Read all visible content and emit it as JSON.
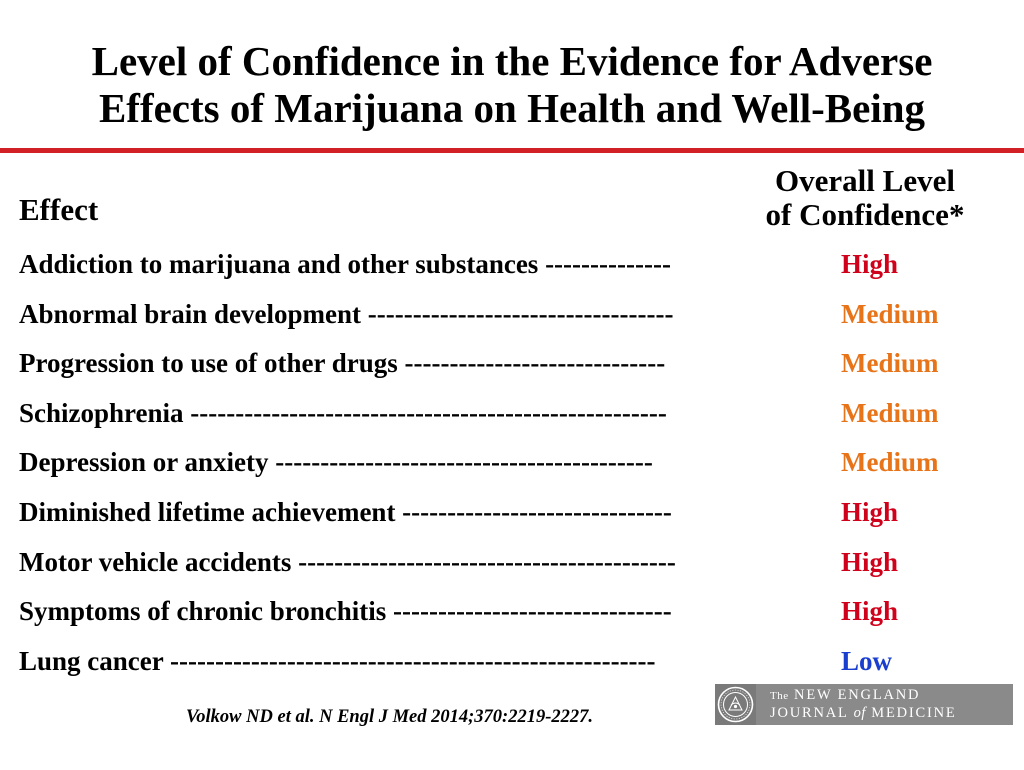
{
  "slide": {
    "title_line1": "Level of Confidence in the Evidence for Adverse",
    "title_line2": "Effects of Marijuana on Health and Well-Being",
    "rule_color": "#d22027"
  },
  "table": {
    "effect_header": "Effect",
    "confidence_header_line1": "Overall Level",
    "confidence_header_line2": "of Confidence*",
    "level_colors": {
      "High": "#d0021b",
      "Medium": "#e8741a",
      "Low": "#1a3fcf"
    },
    "rows": [
      {
        "effect": "Addiction to marijuana and other substances --------------",
        "level": "High"
      },
      {
        "effect": "Abnormal brain development ----------------------------------",
        "level": "Medium"
      },
      {
        "effect": "Progression to use of other drugs -----------------------------",
        "level": "Medium"
      },
      {
        "effect": "Schizophrenia -----------------------------------------------------",
        "level": "Medium"
      },
      {
        "effect": "Depression or anxiety ------------------------------------------",
        "level": "Medium"
      },
      {
        "effect": "Diminished lifetime achievement ------------------------------",
        "level": "High"
      },
      {
        "effect": "Motor vehicle accidents ------------------------------------------",
        "level": "High"
      },
      {
        "effect": "Symptoms of chronic bronchitis -------------------------------",
        "level": "High"
      },
      {
        "effect": "Lung cancer ------------------------------------------------------",
        "level": "Low"
      }
    ]
  },
  "citation": "Volkow ND et al. N Engl J Med 2014;370:2219-2227.",
  "logo": {
    "the": "The",
    "line1": "NEW ENGLAND",
    "journal": "JOURNAL",
    "of": "of",
    "medicine": "MEDICINE",
    "background": "#8a8a8a"
  }
}
